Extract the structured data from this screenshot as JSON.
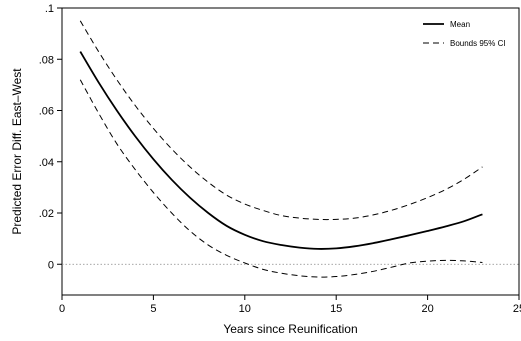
{
  "chart_data": {
    "type": "line",
    "xlabel": "Years since Reunification",
    "ylabel": "Predicted Error Diff. East–West",
    "xlim": [
      0,
      25
    ],
    "ylim": [
      -0.012,
      0.1
    ],
    "xticks": [
      0,
      5,
      10,
      15,
      20,
      25
    ],
    "xtick_labels": [
      "0",
      "5",
      "10",
      "15",
      "20",
      "25"
    ],
    "yticks": [
      0,
      0.02,
      0.04,
      0.06,
      0.08,
      0.1
    ],
    "ytick_labels": [
      "0",
      ".02",
      ".04",
      ".06",
      ".08",
      ".1"
    ],
    "reference_line": {
      "y": 0,
      "style": "dotted"
    },
    "grid": false,
    "legend_position": "top-right",
    "series": [
      {
        "name": "Mean",
        "style": "solid",
        "x": [
          1,
          2,
          3,
          4,
          5,
          6,
          7,
          8,
          9,
          10,
          11,
          12,
          13,
          14,
          15,
          16,
          17,
          18,
          19,
          20,
          21,
          22,
          23
        ],
        "y": [
          0.083,
          0.071,
          0.06,
          0.05,
          0.041,
          0.033,
          0.026,
          0.02,
          0.015,
          0.0115,
          0.009,
          0.0075,
          0.0065,
          0.006,
          0.0062,
          0.007,
          0.0082,
          0.0097,
          0.0113,
          0.013,
          0.0148,
          0.0168,
          0.0195
        ]
      },
      {
        "name": "Bounds 95% CI",
        "style": "dashed",
        "x": [
          1,
          2,
          3,
          4,
          5,
          6,
          7,
          8,
          9,
          10,
          11,
          12,
          13,
          14,
          15,
          16,
          17,
          18,
          19,
          20,
          21,
          22,
          23
        ],
        "y": [
          0.095,
          0.083,
          0.072,
          0.062,
          0.053,
          0.045,
          0.038,
          0.032,
          0.027,
          0.0235,
          0.021,
          0.019,
          0.018,
          0.0175,
          0.0175,
          0.018,
          0.0192,
          0.021,
          0.0233,
          0.026,
          0.0292,
          0.0332,
          0.038
        ]
      },
      {
        "name": "",
        "style": "dashed",
        "x": [
          1,
          2,
          3,
          4,
          5,
          6,
          7,
          8,
          9,
          10,
          11,
          12,
          13,
          14,
          15,
          16,
          17,
          18,
          19,
          20,
          21,
          22,
          23
        ],
        "y": [
          0.072,
          0.059,
          0.047,
          0.037,
          0.028,
          0.02,
          0.013,
          0.0075,
          0.0035,
          0.0005,
          -0.002,
          -0.0035,
          -0.0045,
          -0.005,
          -0.0048,
          -0.004,
          -0.0028,
          -0.0012,
          0.0005,
          0.0012,
          0.0015,
          0.0013,
          0.0007
        ]
      }
    ]
  }
}
